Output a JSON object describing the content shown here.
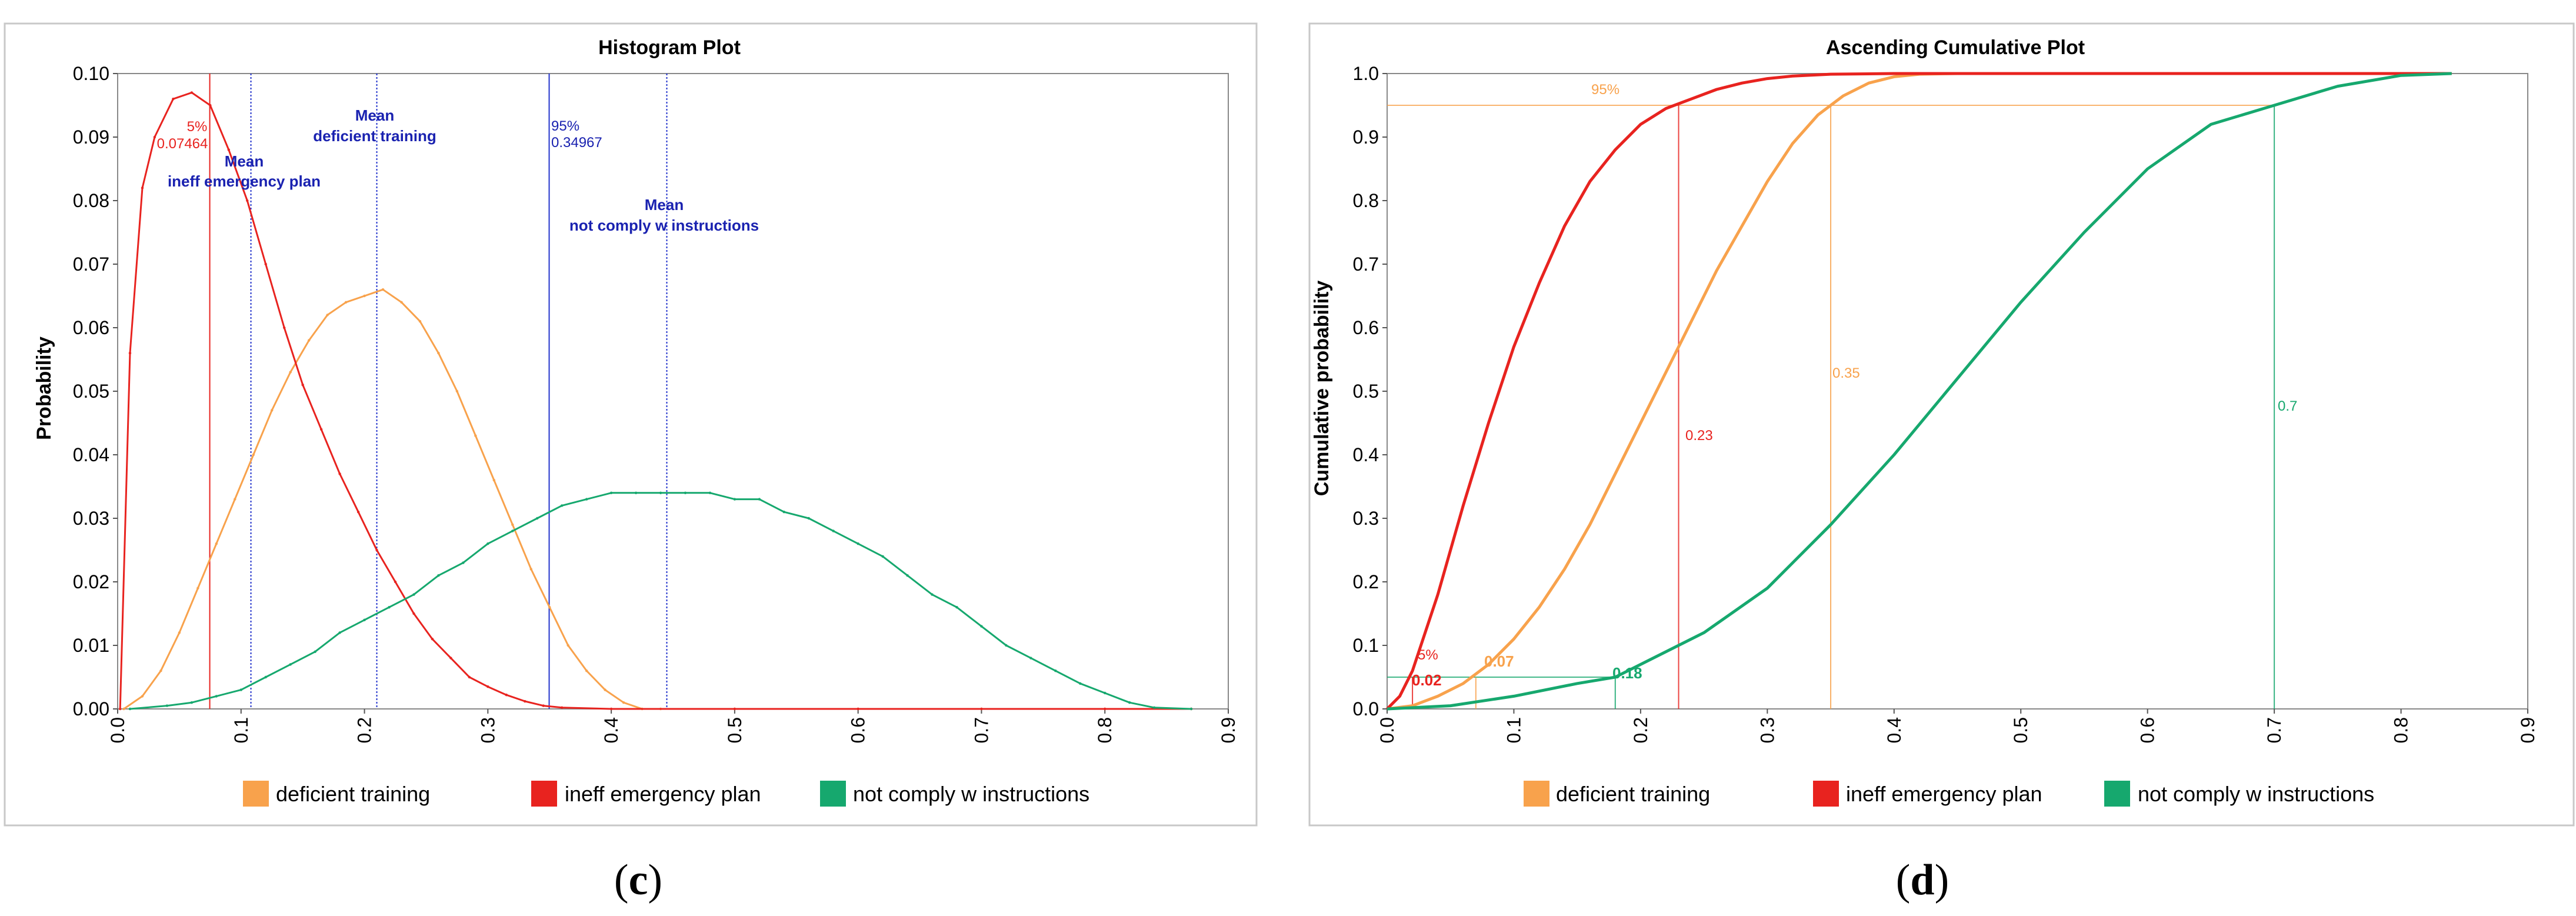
{
  "chart_data": [
    {
      "type": "line",
      "panel": "c",
      "title": "Histogram Plot",
      "xlabel": "",
      "ylabel": "Probability",
      "xlim": [
        0,
        0.9
      ],
      "ylim": [
        0,
        0.1
      ],
      "xticks": [
        "0.0",
        "0.1",
        "0.2",
        "0.3",
        "0.4",
        "0.5",
        "0.6",
        "0.7",
        "0.8",
        "0.9"
      ],
      "yticks": [
        "0.00",
        "0.01",
        "0.02",
        "0.03",
        "0.04",
        "0.05",
        "0.06",
        "0.07",
        "0.08",
        "0.09",
        "0.10"
      ],
      "legend_position": "bottom",
      "series": [
        {
          "name": "deficient training",
          "color": "#F8A24C",
          "x": [
            0.005,
            0.02,
            0.035,
            0.05,
            0.065,
            0.08,
            0.095,
            0.11,
            0.125,
            0.14,
            0.155,
            0.17,
            0.185,
            0.2,
            0.215,
            0.23,
            0.245,
            0.26,
            0.275,
            0.29,
            0.305,
            0.32,
            0.335,
            0.35,
            0.365,
            0.38,
            0.395,
            0.41,
            0.425,
            0.44,
            0.5,
            0.6,
            0.7,
            0.8,
            0.87
          ],
          "y": [
            0.0,
            0.002,
            0.006,
            0.012,
            0.019,
            0.026,
            0.033,
            0.04,
            0.047,
            0.053,
            0.058,
            0.062,
            0.064,
            0.065,
            0.066,
            0.064,
            0.061,
            0.056,
            0.05,
            0.043,
            0.036,
            0.029,
            0.022,
            0.016,
            0.01,
            0.006,
            0.003,
            0.001,
            0.0,
            0.0,
            0.0,
            0.0,
            0.0,
            0.0,
            0.0
          ]
        },
        {
          "name": "ineff emergency plan",
          "color": "#E8231F",
          "x": [
            0.002,
            0.01,
            0.02,
            0.03,
            0.045,
            0.06,
            0.075,
            0.09,
            0.105,
            0.12,
            0.135,
            0.15,
            0.165,
            0.18,
            0.195,
            0.21,
            0.225,
            0.24,
            0.255,
            0.27,
            0.285,
            0.3,
            0.315,
            0.33,
            0.345,
            0.36,
            0.4,
            0.5,
            0.6,
            0.7,
            0.8,
            0.87
          ],
          "y": [
            0.0,
            0.056,
            0.082,
            0.09,
            0.096,
            0.097,
            0.095,
            0.088,
            0.08,
            0.07,
            0.06,
            0.051,
            0.044,
            0.037,
            0.031,
            0.025,
            0.02,
            0.015,
            0.011,
            0.008,
            0.005,
            0.0035,
            0.0022,
            0.0012,
            0.0005,
            0.0002,
            0.0,
            0.0,
            0.0,
            0.0,
            0.0,
            0.0
          ]
        },
        {
          "name": "not comply w instructions",
          "color": "#16A86E",
          "x": [
            0.01,
            0.04,
            0.06,
            0.08,
            0.1,
            0.12,
            0.14,
            0.16,
            0.18,
            0.2,
            0.22,
            0.24,
            0.26,
            0.28,
            0.3,
            0.32,
            0.34,
            0.36,
            0.38,
            0.4,
            0.42,
            0.44,
            0.46,
            0.48,
            0.5,
            0.52,
            0.54,
            0.56,
            0.58,
            0.6,
            0.62,
            0.64,
            0.66,
            0.68,
            0.7,
            0.72,
            0.74,
            0.76,
            0.78,
            0.8,
            0.82,
            0.84,
            0.87
          ],
          "y": [
            0.0,
            0.0005,
            0.001,
            0.002,
            0.003,
            0.005,
            0.007,
            0.009,
            0.012,
            0.014,
            0.016,
            0.018,
            0.021,
            0.023,
            0.026,
            0.028,
            0.03,
            0.032,
            0.033,
            0.034,
            0.034,
            0.034,
            0.034,
            0.034,
            0.033,
            0.033,
            0.031,
            0.03,
            0.028,
            0.026,
            0.024,
            0.021,
            0.018,
            0.016,
            0.013,
            0.01,
            0.008,
            0.006,
            0.004,
            0.0025,
            0.001,
            0.0002,
            0.0
          ]
        }
      ],
      "vlines": [
        {
          "x": 0.07464,
          "color": "#E8231F",
          "style": "solid"
        },
        {
          "x": 0.108,
          "color": "#2233CC",
          "style": "dotted"
        },
        {
          "x": 0.21,
          "color": "#2233CC",
          "style": "dotted"
        },
        {
          "x": 0.34967,
          "color": "#2233CC",
          "style": "solid"
        },
        {
          "x": 0.445,
          "color": "#2233CC",
          "style": "dotted"
        }
      ],
      "annotations": {
        "p5_label": "5%",
        "p5_value": "0.07464",
        "mean_label": "Mean",
        "mean_ineff": "ineff emergency plan",
        "mean_deficient": "deficient training",
        "p95_label": "95%",
        "p95_value": "0.34967",
        "mean_notcomply": "not comply w instructions"
      }
    },
    {
      "type": "line",
      "panel": "d",
      "title": "Ascending Cumulative Plot",
      "xlabel": "",
      "ylabel": "Cumulative  probability",
      "xlim": [
        0,
        0.9
      ],
      "ylim": [
        0,
        1.0
      ],
      "xticks": [
        "0.0",
        "0.1",
        "0.2",
        "0.3",
        "0.4",
        "0.5",
        "0.6",
        "0.7",
        "0.8",
        "0.9"
      ],
      "yticks": [
        "0.0",
        "0.1",
        "0.2",
        "0.3",
        "0.4",
        "0.5",
        "0.6",
        "0.7",
        "0.8",
        "0.9",
        "1.0"
      ],
      "legend_position": "bottom",
      "series": [
        {
          "name": "deficient training",
          "color": "#F8A24C",
          "x": [
            0.0,
            0.02,
            0.04,
            0.06,
            0.08,
            0.1,
            0.12,
            0.14,
            0.16,
            0.18,
            0.2,
            0.22,
            0.24,
            0.26,
            0.28,
            0.3,
            0.32,
            0.34,
            0.36,
            0.38,
            0.4,
            0.42,
            0.45,
            0.5,
            0.6,
            0.7,
            0.84
          ],
          "y": [
            0.0,
            0.005,
            0.02,
            0.04,
            0.07,
            0.11,
            0.16,
            0.22,
            0.29,
            0.37,
            0.45,
            0.53,
            0.61,
            0.69,
            0.76,
            0.83,
            0.89,
            0.935,
            0.965,
            0.985,
            0.995,
            0.999,
            1.0,
            1.0,
            1.0,
            1.0,
            1.0
          ]
        },
        {
          "name": "ineff emergency plan",
          "color": "#E8231F",
          "x": [
            0.0,
            0.01,
            0.02,
            0.04,
            0.06,
            0.08,
            0.1,
            0.12,
            0.14,
            0.16,
            0.18,
            0.2,
            0.22,
            0.24,
            0.26,
            0.28,
            0.3,
            0.32,
            0.35,
            0.4,
            0.5,
            0.6,
            0.7,
            0.84
          ],
          "y": [
            0.0,
            0.02,
            0.06,
            0.18,
            0.32,
            0.45,
            0.57,
            0.67,
            0.76,
            0.83,
            0.88,
            0.92,
            0.945,
            0.96,
            0.975,
            0.985,
            0.992,
            0.996,
            0.999,
            1.0,
            1.0,
            1.0,
            1.0,
            1.0
          ]
        },
        {
          "name": "not comply w instructions",
          "color": "#16A86E",
          "x": [
            0.0,
            0.05,
            0.1,
            0.15,
            0.18,
            0.2,
            0.25,
            0.3,
            0.35,
            0.4,
            0.45,
            0.5,
            0.55,
            0.6,
            0.65,
            0.7,
            0.75,
            0.8,
            0.84
          ],
          "y": [
            0.0,
            0.005,
            0.02,
            0.04,
            0.05,
            0.07,
            0.12,
            0.19,
            0.29,
            0.4,
            0.52,
            0.64,
            0.75,
            0.85,
            0.92,
            0.95,
            0.98,
            0.997,
            1.0
          ]
        }
      ],
      "vlines": [
        {
          "x": 0.02,
          "color": "#E8231F"
        },
        {
          "x": 0.07,
          "color": "#F8A24C"
        },
        {
          "x": 0.18,
          "color": "#16A86E"
        },
        {
          "x": 0.23,
          "color": "#E8231F"
        },
        {
          "x": 0.35,
          "color": "#F8A24C"
        },
        {
          "x": 0.7,
          "color": "#16A86E"
        }
      ],
      "hlines": [
        {
          "y": 0.05,
          "color": "#16A86E"
        },
        {
          "y": 0.95,
          "color": "#F8A24C"
        }
      ],
      "annotations": {
        "p5_label": "5%",
        "p95_label": "95%",
        "v_002": "0.02",
        "v_007": "0.07",
        "v_018": "0.18",
        "v_023": "0.23",
        "v_035": "0.35",
        "v_07": "0.7"
      }
    }
  ],
  "captions": {
    "left_letter": "c",
    "right_letter": "d",
    "open": "(",
    "close": ")"
  }
}
